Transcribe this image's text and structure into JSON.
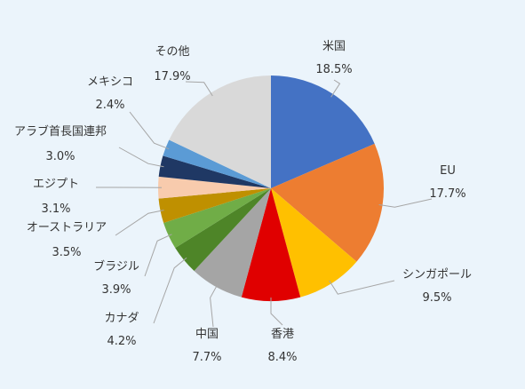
{
  "chart_data": {
    "type": "pie",
    "title": "",
    "legend": "none",
    "slices": [
      {
        "name": "米国",
        "value": 18.5,
        "label": "18.5%",
        "color": "#4472C4"
      },
      {
        "name": "EU",
        "value": 17.7,
        "label": "17.7%",
        "color": "#ED7D31"
      },
      {
        "name": "シンガポール",
        "value": 9.5,
        "label": "9.5%",
        "color": "#FFC000"
      },
      {
        "name": "香港",
        "value": 8.4,
        "label": "8.4%",
        "color": "#E00000"
      },
      {
        "name": "中国",
        "value": 7.7,
        "label": "7.7%",
        "color": "#A5A5A5"
      },
      {
        "name": "カナダ",
        "value": 4.2,
        "label": "4.2%",
        "color": "#4E8528"
      },
      {
        "name": "ブラジル",
        "value": 3.9,
        "label": "3.9%",
        "color": "#70AD47"
      },
      {
        "name": "オーストラリア",
        "value": 3.5,
        "label": "3.5%",
        "color": "#BF9000"
      },
      {
        "name": "エジプト",
        "value": 3.1,
        "label": "3.1%",
        "color": "#F8CBAD"
      },
      {
        "name": "アラブ首長国連邦",
        "value": 3.0,
        "label": "3.0%",
        "color": "#1F3864"
      },
      {
        "name": "メキシコ",
        "value": 2.4,
        "label": "2.4%",
        "color": "#5B9BD5"
      },
      {
        "name": "その他",
        "value": 17.9,
        "label": "17.9%",
        "color": "#D9D9D9"
      }
    ]
  }
}
